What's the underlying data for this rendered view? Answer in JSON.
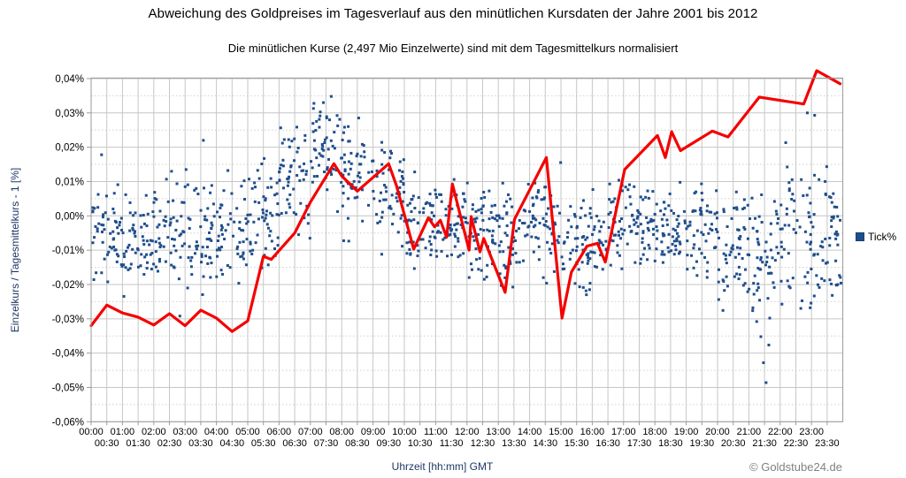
{
  "title": "Abweichung des Goldpreises im Tagesverlauf aus den minütlichen Kursdaten der Jahre 2001 bis 2012",
  "subtitle": "Die minütlichen Kurse (2,497 Mio Einzelwerte) sind mit dem Tagesmittelkurs normalisiert",
  "watermark": "© Goldstube24.de",
  "legend": {
    "label": "Tick%",
    "color": "#1f4e8c"
  },
  "colors": {
    "scatter": "#1f4e8c",
    "trend_line": "#f40000",
    "grid_major": "#c6c6c6",
    "grid_minor": "#cfcfcf",
    "plot_border": "#9a9a9a",
    "tick_text": "#000000",
    "axis_title": "#1f3864",
    "watermark": "#808080"
  },
  "chart_data": {
    "type": "scatter",
    "title": "Abweichung des Goldpreises im Tagesverlauf aus den minütlichen Kursdaten der Jahre 2001 bis 2012",
    "subtitle": "Die minütlichen Kurse (2,497 Mio Einzelwerte) sind mit dem Tagesmittelkurs normalisiert",
    "legend_position": "right",
    "grid": true,
    "x_axis": {
      "label": "Uhrzeit [hh:mm] GMT",
      "unit": "hh:mm GMT",
      "range_minutes": [
        0,
        1440
      ],
      "tick_interval_minutes": 30,
      "labels": [
        "00:00",
        "00:30",
        "01:00",
        "01:30",
        "02:00",
        "02:30",
        "03:00",
        "03:30",
        "04:00",
        "04:30",
        "05:00",
        "05:30",
        "06:00",
        "06:30",
        "07:00",
        "07:30",
        "08:00",
        "08:30",
        "09:00",
        "09:30",
        "10:00",
        "10:30",
        "11:00",
        "11:30",
        "12:00",
        "12:30",
        "13:00",
        "13:30",
        "14:00",
        "14:30",
        "15:00",
        "15:30",
        "16:00",
        "16:30",
        "17:00",
        "17:30",
        "18:00",
        "18:30",
        "19:00",
        "19:30",
        "20:00",
        "20:30",
        "21:00",
        "21:30",
        "22:00",
        "22:30",
        "23:00",
        "23:30"
      ]
    },
    "y_axis": {
      "label": "Einzelkurs / Tagesmittelkurs - 1 [%]",
      "min": -0.06,
      "max": 0.04,
      "major_step": 0.01,
      "minor_step": 0.005,
      "ticks": [
        {
          "v": 0.04,
          "label": "0,04%"
        },
        {
          "v": 0.03,
          "label": "0,03%"
        },
        {
          "v": 0.02,
          "label": "0,02%"
        },
        {
          "v": 0.01,
          "label": "0,01%"
        },
        {
          "v": 0.0,
          "label": "0,00%"
        },
        {
          "v": -0.01,
          "label": "-0,01%"
        },
        {
          "v": -0.02,
          "label": "-0,02%"
        },
        {
          "v": -0.03,
          "label": "-0,03%"
        },
        {
          "v": -0.04,
          "label": "-0,04%"
        },
        {
          "v": -0.05,
          "label": "-0,05%"
        },
        {
          "v": -0.06,
          "label": "-0,06%"
        }
      ]
    },
    "series": [
      {
        "name": "Tick%",
        "type": "scatter",
        "color": "#1f4e8c",
        "marker": "square",
        "points_per_hour": 55,
        "distribution_by_hour": [
          {
            "hour": "00:00",
            "mean": -0.006,
            "sd": 0.007,
            "min": -0.023,
            "max": 0.018
          },
          {
            "hour": "01:00",
            "mean": -0.007,
            "sd": 0.007,
            "min": -0.024,
            "max": 0.01
          },
          {
            "hour": "02:00",
            "mean": -0.006,
            "sd": 0.008,
            "min": -0.03,
            "max": 0.013
          },
          {
            "hour": "03:00",
            "mean": -0.004,
            "sd": 0.009,
            "min": -0.026,
            "max": 0.022
          },
          {
            "hour": "04:00",
            "mean": -0.005,
            "sd": 0.008,
            "min": -0.022,
            "max": 0.018
          },
          {
            "hour": "05:00",
            "mean": -0.001,
            "sd": 0.008,
            "min": -0.016,
            "max": 0.02
          },
          {
            "hour": "06:00",
            "mean": 0.01,
            "sd": 0.009,
            "min": -0.012,
            "max": 0.03
          },
          {
            "hour": "07:00",
            "mean": 0.018,
            "sd": 0.008,
            "min": -0.002,
            "max": 0.035
          },
          {
            "hour": "08:00",
            "mean": 0.013,
            "sd": 0.008,
            "min": -0.01,
            "max": 0.032
          },
          {
            "hour": "09:00",
            "mean": 0.007,
            "sd": 0.008,
            "min": -0.013,
            "max": 0.027
          },
          {
            "hour": "10:00",
            "mean": -0.002,
            "sd": 0.007,
            "min": -0.016,
            "max": 0.014
          },
          {
            "hour": "11:00",
            "mean": -0.001,
            "sd": 0.006,
            "min": -0.013,
            "max": 0.012
          },
          {
            "hour": "12:00",
            "mean": -0.005,
            "sd": 0.007,
            "min": -0.019,
            "max": 0.01
          },
          {
            "hour": "13:00",
            "mean": -0.007,
            "sd": 0.008,
            "min": -0.024,
            "max": 0.01
          },
          {
            "hour": "14:00",
            "mean": -0.003,
            "sd": 0.009,
            "min": -0.022,
            "max": 0.017
          },
          {
            "hour": "15:00",
            "mean": -0.009,
            "sd": 0.007,
            "min": -0.023,
            "max": 0.006
          },
          {
            "hour": "16:00",
            "mean": -0.005,
            "sd": 0.007,
            "min": -0.018,
            "max": 0.011
          },
          {
            "hour": "17:00",
            "mean": -0.002,
            "sd": 0.006,
            "min": -0.014,
            "max": 0.012
          },
          {
            "hour": "18:00",
            "mean": -0.004,
            "sd": 0.006,
            "min": -0.016,
            "max": 0.01
          },
          {
            "hour": "19:00",
            "mean": -0.005,
            "sd": 0.007,
            "min": -0.019,
            "max": 0.01
          },
          {
            "hour": "20:00",
            "mean": -0.009,
            "sd": 0.009,
            "min": -0.031,
            "max": 0.007
          },
          {
            "hour": "21:00",
            "mean": -0.011,
            "sd": 0.011,
            "min": -0.049,
            "max": 0.007
          },
          {
            "hour": "22:00",
            "mean": -0.009,
            "sd": 0.011,
            "min": -0.028,
            "max": 0.03
          },
          {
            "hour": "23:00",
            "mean": -0.007,
            "sd": 0.012,
            "min": -0.026,
            "max": 0.03
          }
        ],
        "notable_outliers": [
          [
            "00:20",
            0.0178
          ],
          [
            "02:50",
            -0.0292
          ],
          [
            "03:35",
            0.022
          ],
          [
            "07:25",
            0.033
          ],
          [
            "07:40",
            0.0348
          ],
          [
            "21:15",
            -0.0308
          ],
          [
            "21:23",
            -0.0352
          ],
          [
            "21:28",
            -0.0428
          ],
          [
            "21:33",
            -0.0486
          ],
          [
            "21:40",
            -0.0298
          ],
          [
            "22:52",
            0.03
          ],
          [
            "23:06",
            0.0293
          ]
        ]
      },
      {
        "name": "",
        "type": "line",
        "color": "#f40000",
        "width": 3.2,
        "points": [
          [
            "00:00",
            -0.032
          ],
          [
            "00:30",
            -0.026
          ],
          [
            "01:00",
            -0.0283
          ],
          [
            "01:30",
            -0.0295
          ],
          [
            "02:00",
            -0.0318
          ],
          [
            "02:30",
            -0.0285
          ],
          [
            "03:00",
            -0.032
          ],
          [
            "03:30",
            -0.0275
          ],
          [
            "04:00",
            -0.0298
          ],
          [
            "04:30",
            -0.0337
          ],
          [
            "05:00",
            -0.0306
          ],
          [
            "05:30",
            -0.0118
          ],
          [
            "05:45",
            -0.0127
          ],
          [
            "06:30",
            -0.005
          ],
          [
            "07:00",
            0.004
          ],
          [
            "07:45",
            0.0152
          ],
          [
            "08:00",
            0.0116
          ],
          [
            "08:30",
            0.0072
          ],
          [
            "09:30",
            0.0152
          ],
          [
            "09:45",
            0.0088
          ],
          [
            "10:18",
            -0.0097
          ],
          [
            "10:46",
            -0.0006
          ],
          [
            "10:58",
            -0.0032
          ],
          [
            "11:09",
            -0.0013
          ],
          [
            "11:21",
            -0.0062
          ],
          [
            "11:32",
            0.0093
          ],
          [
            "12:04",
            -0.01
          ],
          [
            "12:08",
            -0.0002
          ],
          [
            "12:25",
            -0.0105
          ],
          [
            "12:32",
            -0.0066
          ],
          [
            "13:13",
            -0.0223
          ],
          [
            "13:31",
            -0.001
          ],
          [
            "14:32",
            0.017
          ],
          [
            "15:02",
            -0.0298
          ],
          [
            "15:20",
            -0.0164
          ],
          [
            "15:50",
            -0.0088
          ],
          [
            "16:10",
            -0.008
          ],
          [
            "16:25",
            -0.0135
          ],
          [
            "17:02",
            0.0135
          ],
          [
            "18:05",
            0.0234
          ],
          [
            "18:20",
            0.017
          ],
          [
            "18:32",
            0.0245
          ],
          [
            "18:49",
            0.019
          ],
          [
            "19:50",
            0.0247
          ],
          [
            "20:20",
            0.023
          ],
          [
            "21:20",
            0.0346
          ],
          [
            "22:45",
            0.0326
          ],
          [
            "23:10",
            0.0423
          ],
          [
            "23:55",
            0.0385
          ]
        ]
      }
    ]
  }
}
